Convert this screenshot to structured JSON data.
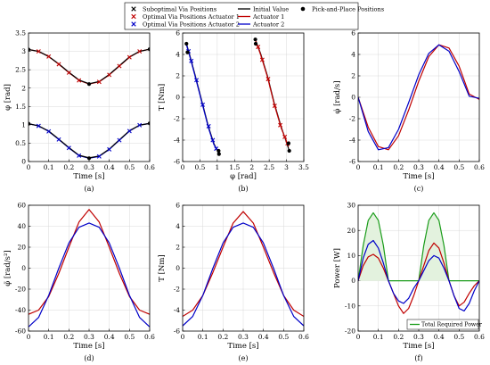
{
  "colors": {
    "red": "#c00000",
    "blue": "#0000c8",
    "black": "#000000",
    "green": "#1a9c1a",
    "green_fill": "#e3f2de"
  },
  "legend_top": {
    "entries": [
      {
        "label": "Suboptimal Via Positions",
        "marker": "x",
        "color": "#000000"
      },
      {
        "label": "Optimal Via Positions Actuator 1",
        "marker": "x",
        "color": "#c00000"
      },
      {
        "label": "Optimal Via Positions Actuator 2",
        "marker": "x",
        "color": "#0000c8"
      },
      {
        "label": "Initial Value",
        "marker": "line",
        "color": "#000000"
      },
      {
        "label": "Actuator 1",
        "marker": "line",
        "color": "#c00000"
      },
      {
        "label": "Actuator 2",
        "marker": "line",
        "color": "#0000c8"
      },
      {
        "label": "Pick-and-Place Positions",
        "marker": "dot",
        "color": "#000000"
      }
    ]
  },
  "chart_data": [
    {
      "id": "a",
      "type": "line",
      "caption": "(a)",
      "xlabel": "Time [s]",
      "ylabel": "φ [rad]",
      "xlim": [
        0,
        0.6
      ],
      "ylim": [
        0,
        3.5
      ],
      "grid": true,
      "xticks": [
        "0",
        "0.1",
        "0.2",
        "0.3",
        "0.4",
        "0.5",
        "0.6"
      ],
      "yticks": [
        "0",
        "0.5",
        "1",
        "1.5",
        "2",
        "2.5",
        "3",
        "3.5"
      ],
      "series": [
        {
          "color": "#c00000",
          "style": "line",
          "x": [
            0,
            0.05,
            0.1,
            0.15,
            0.2,
            0.25,
            0.3,
            0.35,
            0.4,
            0.45,
            0.5,
            0.55,
            0.6
          ],
          "y": [
            3.05,
            3.0,
            2.86,
            2.65,
            2.42,
            2.21,
            2.11,
            2.17,
            2.36,
            2.6,
            2.84,
            3.0,
            3.06
          ]
        },
        {
          "color": "#0000c8",
          "style": "line",
          "x": [
            0,
            0.05,
            0.1,
            0.15,
            0.2,
            0.25,
            0.3,
            0.35,
            0.4,
            0.45,
            0.5,
            0.55,
            0.6
          ],
          "y": [
            1.03,
            0.97,
            0.82,
            0.6,
            0.37,
            0.16,
            0.09,
            0.14,
            0.33,
            0.58,
            0.83,
            0.99,
            1.04
          ]
        },
        {
          "color": "#000000",
          "style": "line",
          "x": [
            0,
            0.05,
            0.1,
            0.15,
            0.2,
            0.25,
            0.3,
            0.35,
            0.4,
            0.45,
            0.5,
            0.55,
            0.6
          ],
          "y": [
            3.05,
            3.0,
            2.86,
            2.66,
            2.43,
            2.22,
            2.12,
            2.18,
            2.37,
            2.61,
            2.85,
            3.0,
            3.06
          ]
        },
        {
          "color": "#000000",
          "style": "line",
          "x": [
            0,
            0.05,
            0.1,
            0.15,
            0.2,
            0.25,
            0.3,
            0.35,
            0.4,
            0.45,
            0.5,
            0.55,
            0.6
          ],
          "y": [
            1.03,
            0.97,
            0.83,
            0.61,
            0.38,
            0.17,
            0.1,
            0.15,
            0.34,
            0.59,
            0.84,
            0.99,
            1.04
          ]
        },
        {
          "color": "#c00000",
          "style": "x",
          "x": [
            0.05,
            0.1,
            0.15,
            0.2,
            0.25,
            0.35,
            0.4,
            0.45,
            0.5,
            0.55
          ],
          "y": [
            3.0,
            2.86,
            2.65,
            2.42,
            2.21,
            2.17,
            2.36,
            2.6,
            2.84,
            3.0
          ]
        },
        {
          "color": "#0000c8",
          "style": "x",
          "x": [
            0.05,
            0.1,
            0.15,
            0.2,
            0.25,
            0.35,
            0.4,
            0.45,
            0.5,
            0.55
          ],
          "y": [
            0.97,
            0.82,
            0.6,
            0.37,
            0.16,
            0.14,
            0.33,
            0.58,
            0.83,
            0.99
          ]
        },
        {
          "color": "#000000",
          "style": "dot",
          "x": [
            0,
            0.3,
            0.6,
            0,
            0.3,
            0.6
          ],
          "y": [
            3.05,
            2.11,
            3.06,
            1.03,
            0.09,
            1.04
          ]
        }
      ]
    },
    {
      "id": "b",
      "type": "line",
      "caption": "(b)",
      "xlabel": "φ [rad]",
      "ylabel": "T [Nm]",
      "xlim": [
        0,
        3.5
      ],
      "ylim": [
        -6,
        6
      ],
      "grid": true,
      "xticks": [
        "0",
        "0.5",
        "1",
        "1.5",
        "2",
        "2.5",
        "3",
        "3.5"
      ],
      "yticks": [
        "-6",
        "-4",
        "-2",
        "0",
        "2",
        "4",
        "6"
      ],
      "series": [
        {
          "color": "#000000",
          "style": "line",
          "x": [
            0.11,
            0.2,
            0.35,
            0.55,
            0.75,
            0.9,
            1.05
          ],
          "y": [
            5.0,
            4.0,
            2.2,
            -0.3,
            -2.8,
            -4.3,
            -5.3
          ]
        },
        {
          "color": "#0000c8",
          "style": "line",
          "x": [
            0.11,
            0.2,
            0.35,
            0.55,
            0.75,
            0.9,
            1.04
          ],
          "y": [
            4.9,
            3.9,
            2.1,
            -0.4,
            -2.9,
            -4.4,
            -5.1
          ]
        },
        {
          "color": "#000000",
          "style": "line",
          "x": [
            2.1,
            2.25,
            2.45,
            2.65,
            2.85,
            3.0,
            3.08
          ],
          "y": [
            5.4,
            4.1,
            2.0,
            -0.6,
            -2.8,
            -4.2,
            -5.0
          ]
        },
        {
          "color": "#c00000",
          "style": "line",
          "x": [
            2.11,
            2.25,
            2.45,
            2.65,
            2.85,
            3.0,
            3.06
          ],
          "y": [
            5.3,
            4.0,
            1.9,
            -0.7,
            -2.9,
            -4.1,
            -4.6
          ]
        },
        {
          "color": "#0000c8",
          "style": "x",
          "x": [
            0.17,
            0.25,
            0.4,
            0.58,
            0.75,
            0.87,
            0.97
          ],
          "y": [
            4.3,
            3.4,
            1.6,
            -0.7,
            -2.7,
            -4.0,
            -4.8
          ]
        },
        {
          "color": "#c00000",
          "style": "x",
          "x": [
            2.18,
            2.3,
            2.47,
            2.66,
            2.82,
            2.95,
            3.03
          ],
          "y": [
            4.7,
            3.5,
            1.7,
            -0.8,
            -2.6,
            -3.7,
            -4.3
          ]
        },
        {
          "color": "#000000",
          "style": "dot",
          "x": [
            0.11,
            0.14,
            1.05,
            1.04,
            2.1,
            2.11,
            3.08,
            3.06
          ],
          "y": [
            5.0,
            4.2,
            -5.3,
            -5.0,
            5.4,
            5.0,
            -5.0,
            -4.3
          ]
        }
      ]
    },
    {
      "id": "c",
      "type": "line",
      "caption": "(c)",
      "xlabel": "Time [s]",
      "ylabel": "φ̇ [rad/s]",
      "xlim": [
        0,
        0.6
      ],
      "ylim": [
        -6,
        6
      ],
      "grid": true,
      "xticks": [
        "0",
        "0.1",
        "0.2",
        "0.3",
        "0.4",
        "0.5",
        "0.6"
      ],
      "yticks": [
        "-6",
        "-4",
        "-2",
        "0",
        "2",
        "4",
        "6"
      ],
      "series": [
        {
          "color": "#c00000",
          "style": "line",
          "x": [
            0,
            0.05,
            0.1,
            0.15,
            0.2,
            0.25,
            0.3,
            0.35,
            0.4,
            0.45,
            0.5,
            0.55,
            0.6
          ],
          "y": [
            0,
            -2.8,
            -4.6,
            -4.9,
            -3.6,
            -1.2,
            1.5,
            3.8,
            4.9,
            4.6,
            2.9,
            0.3,
            -0.2
          ]
        },
        {
          "color": "#0000c8",
          "style": "line",
          "x": [
            0,
            0.05,
            0.1,
            0.15,
            0.2,
            0.25,
            0.3,
            0.35,
            0.4,
            0.45,
            0.5,
            0.55,
            0.6
          ],
          "y": [
            0,
            -3.2,
            -4.9,
            -4.7,
            -3.0,
            -0.5,
            2.1,
            4.1,
            4.9,
            4.3,
            2.4,
            0.1,
            -0.1
          ]
        }
      ]
    },
    {
      "id": "d",
      "type": "line",
      "caption": "(d)",
      "xlabel": "Time [s]",
      "ylabel": "φ̈ [rad/s²]",
      "xlim": [
        0,
        0.6
      ],
      "ylim": [
        -60,
        60
      ],
      "grid": true,
      "xticks": [
        "0",
        "0.1",
        "0.2",
        "0.3",
        "0.4",
        "0.5",
        "0.6"
      ],
      "yticks": [
        "-60",
        "-40",
        "-20",
        "0",
        "20",
        "40",
        "60"
      ],
      "series": [
        {
          "color": "#c00000",
          "style": "line",
          "x": [
            0,
            0.05,
            0.1,
            0.15,
            0.2,
            0.25,
            0.3,
            0.35,
            0.4,
            0.45,
            0.5,
            0.55,
            0.6
          ],
          "y": [
            -44,
            -40,
            -27,
            -5,
            20,
            44,
            56,
            44,
            20,
            -5,
            -27,
            -40,
            -44
          ]
        },
        {
          "color": "#0000c8",
          "style": "line",
          "x": [
            0,
            0.05,
            0.1,
            0.15,
            0.2,
            0.25,
            0.3,
            0.35,
            0.4,
            0.45,
            0.5,
            0.55,
            0.6
          ],
          "y": [
            -56,
            -47,
            -26,
            0,
            24,
            39,
            43,
            39,
            24,
            0,
            -26,
            -47,
            -56
          ]
        }
      ]
    },
    {
      "id": "e",
      "type": "line",
      "caption": "(e)",
      "xlabel": "Time [s]",
      "ylabel": "T [Nm]",
      "xlim": [
        0,
        0.6
      ],
      "ylim": [
        -6,
        6
      ],
      "grid": true,
      "xticks": [
        "0",
        "0.1",
        "0.2",
        "0.3",
        "0.4",
        "0.5",
        "0.6"
      ],
      "yticks": [
        "-6",
        "-4",
        "-2",
        "0",
        "2",
        "4",
        "6"
      ],
      "series": [
        {
          "color": "#c00000",
          "style": "line",
          "x": [
            0,
            0.05,
            0.1,
            0.15,
            0.2,
            0.25,
            0.3,
            0.35,
            0.4,
            0.45,
            0.5,
            0.55,
            0.6
          ],
          "y": [
            -4.6,
            -4.0,
            -2.6,
            -0.4,
            2.0,
            4.3,
            5.4,
            4.3,
            2.0,
            -0.4,
            -2.6,
            -4.0,
            -4.6
          ]
        },
        {
          "color": "#0000c8",
          "style": "line",
          "x": [
            0,
            0.05,
            0.1,
            0.15,
            0.2,
            0.25,
            0.3,
            0.35,
            0.4,
            0.45,
            0.5,
            0.55,
            0.6
          ],
          "y": [
            -5.5,
            -4.6,
            -2.6,
            0,
            2.4,
            3.9,
            4.3,
            3.9,
            2.4,
            0,
            -2.6,
            -4.6,
            -5.5
          ]
        }
      ]
    },
    {
      "id": "f",
      "type": "area",
      "caption": "(f)",
      "xlabel": "Time [s]",
      "ylabel": "Power [W]",
      "xlim": [
        0,
        0.6
      ],
      "ylim": [
        -20,
        30
      ],
      "grid": true,
      "xticks": [
        "0",
        "0.1",
        "0.2",
        "0.3",
        "0.4",
        "0.5",
        "0.6"
      ],
      "yticks": [
        "-20",
        "-10",
        "0",
        "10",
        "20",
        "30"
      ],
      "legend": {
        "label": "Total Required Power",
        "position": "bottom-right"
      },
      "series": [
        {
          "color": "#1a9c1a",
          "style": "line",
          "fill": true,
          "x": [
            0,
            0.025,
            0.05,
            0.075,
            0.1,
            0.125,
            0.15,
            0.2,
            0.25,
            0.3,
            0.325,
            0.35,
            0.375,
            0.4,
            0.425,
            0.45,
            0.5,
            0.55,
            0.6
          ],
          "y": [
            0,
            14,
            24,
            27,
            24,
            14,
            0,
            0,
            0,
            0,
            14,
            24,
            27,
            24,
            14,
            0,
            0,
            0,
            0
          ]
        },
        {
          "color": "#c00000",
          "style": "line",
          "x": [
            0,
            0.025,
            0.05,
            0.075,
            0.1,
            0.125,
            0.15,
            0.175,
            0.2,
            0.225,
            0.25,
            0.275,
            0.3,
            0.325,
            0.35,
            0.375,
            0.4,
            0.425,
            0.45,
            0.475,
            0.5,
            0.525,
            0.55,
            0.575,
            0.6
          ],
          "y": [
            0,
            6,
            9.5,
            10.5,
            9,
            5,
            0,
            -5,
            -10,
            -13,
            -11,
            -6,
            0,
            6,
            12,
            15,
            13,
            7,
            0,
            -6,
            -10,
            -8.5,
            -5,
            -2,
            0
          ]
        },
        {
          "color": "#0000c8",
          "style": "line",
          "x": [
            0,
            0.025,
            0.05,
            0.075,
            0.1,
            0.125,
            0.15,
            0.175,
            0.2,
            0.225,
            0.25,
            0.275,
            0.3,
            0.325,
            0.35,
            0.375,
            0.4,
            0.425,
            0.45,
            0.475,
            0.5,
            0.525,
            0.55,
            0.575,
            0.6
          ],
          "y": [
            0,
            9,
            14.5,
            16,
            13,
            7,
            0,
            -5,
            -8,
            -9,
            -7,
            -3,
            0,
            4,
            8,
            10,
            9,
            5,
            0,
            -6,
            -11,
            -12,
            -9,
            -4,
            0
          ]
        }
      ]
    }
  ]
}
